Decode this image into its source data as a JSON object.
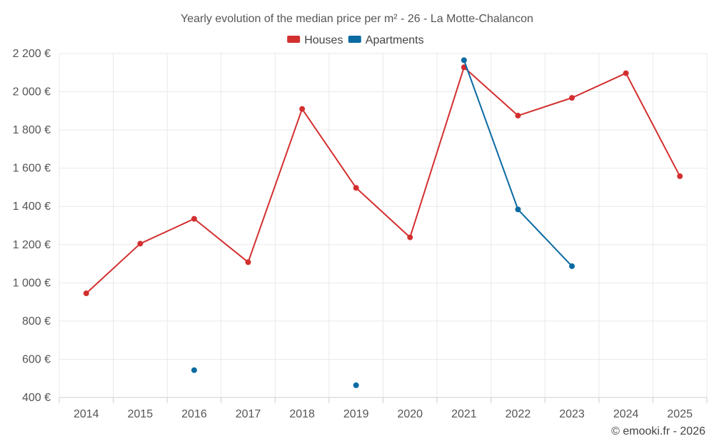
{
  "chart_data": {
    "type": "line",
    "title": "Yearly evolution of the median price per m² - 26 - La Motte-Chalancon",
    "categories": [
      "2014",
      "2015",
      "2016",
      "2017",
      "2018",
      "2019",
      "2020",
      "2021",
      "2022",
      "2023",
      "2024",
      "2025"
    ],
    "y_tick_values": [
      400,
      600,
      800,
      1000,
      1200,
      1400,
      1600,
      1800,
      2000,
      2200
    ],
    "y_tick_labels": [
      "400 €",
      "600 €",
      "800 €",
      "1 000 €",
      "1 200 €",
      "1 400 €",
      "1 600 €",
      "1 800 €",
      "2 000 €",
      "2 200 €"
    ],
    "ylim": [
      400,
      2200
    ],
    "xlabel": "",
    "ylabel": "",
    "grid": true,
    "legend_position": "top-center",
    "series": [
      {
        "name": "Houses",
        "color": "#d32f2f",
        "values": [
          945,
          1205,
          1335,
          1108,
          1910,
          1497,
          1238,
          2128,
          1875,
          1968,
          2097,
          1558
        ]
      },
      {
        "name": "Apartments",
        "color": "#0b6aa2",
        "values": [
          null,
          null,
          543,
          null,
          null,
          464,
          null,
          2165,
          1384,
          1087,
          null,
          null
        ]
      }
    ],
    "credit": "© emooki.fr - 2026"
  }
}
